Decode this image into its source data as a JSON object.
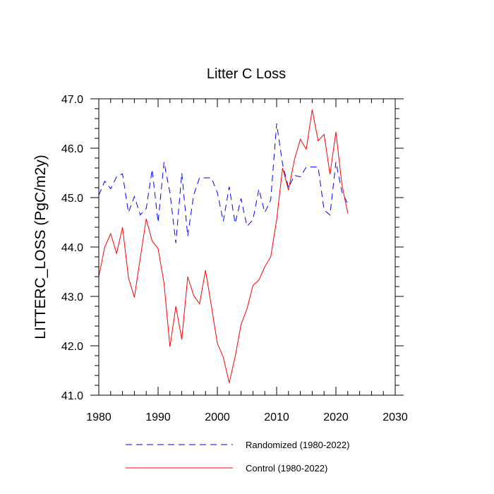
{
  "chart_data": {
    "type": "line",
    "title": "Litter C Loss",
    "xlabel": "",
    "ylabel": "LITTERC_LOSS  (PgC/m2y)",
    "xlim": [
      1980,
      2030
    ],
    "ylim": [
      41.0,
      47.0
    ],
    "x_ticks": [
      1980,
      1990,
      2000,
      2010,
      2020,
      2030
    ],
    "x_tick_labels": [
      "1980",
      "1990",
      "2000",
      "2010",
      "2020",
      "2030"
    ],
    "y_ticks": [
      41.0,
      42.0,
      43.0,
      44.0,
      45.0,
      46.0,
      47.0
    ],
    "y_tick_labels": [
      "41.0",
      "42.0",
      "43.0",
      "44.0",
      "45.0",
      "46.0",
      "47.0"
    ],
    "x": [
      1980,
      1981,
      1982,
      1983,
      1984,
      1985,
      1986,
      1987,
      1988,
      1989,
      1990,
      1991,
      1992,
      1993,
      1994,
      1995,
      1996,
      1997,
      1998,
      1999,
      2000,
      2001,
      2002,
      2003,
      2004,
      2005,
      2006,
      2007,
      2008,
      2009,
      2010,
      2011,
      2012,
      2013,
      2014,
      2015,
      2016,
      2017,
      2018,
      2019,
      2020,
      2021,
      2022
    ],
    "series": [
      {
        "name": "Randomized (1980-2022)",
        "color": "#0000ff",
        "dash": "dashed",
        "values": [
          45.05,
          45.33,
          45.18,
          45.42,
          45.48,
          44.7,
          45.02,
          44.65,
          44.78,
          45.57,
          44.5,
          45.72,
          45.1,
          44.08,
          45.5,
          44.22,
          45.05,
          45.4,
          45.4,
          45.4,
          45.1,
          44.52,
          45.22,
          44.48,
          44.98,
          44.42,
          44.55,
          45.17,
          44.7,
          44.95,
          46.5,
          45.68,
          45.2,
          45.45,
          45.42,
          45.62,
          45.62,
          45.62,
          44.75,
          44.65,
          45.72,
          45.12,
          44.87
        ]
      },
      {
        "name": "Control (1980-2022)",
        "color": "#ff0000",
        "dash": "solid",
        "values": [
          43.4,
          44.0,
          44.27,
          43.87,
          44.4,
          43.38,
          42.98,
          43.78,
          44.57,
          44.12,
          43.97,
          43.27,
          41.98,
          42.8,
          42.13,
          43.4,
          43.02,
          42.85,
          43.53,
          42.8,
          42.05,
          41.77,
          41.25,
          41.78,
          42.43,
          42.75,
          43.22,
          43.33,
          43.6,
          43.8,
          44.55,
          45.6,
          45.15,
          45.77,
          46.18,
          45.98,
          46.78,
          46.15,
          46.28,
          45.47,
          46.33,
          45.27,
          44.68
        ]
      }
    ],
    "legend": [
      {
        "label": "Randomized (1980-2022)",
        "color": "#0000ff",
        "dash": "dashed"
      },
      {
        "label": "Control (1980-2022)",
        "color": "#ff0000",
        "dash": "solid"
      }
    ],
    "legend_position": "bottom",
    "grid": false
  }
}
